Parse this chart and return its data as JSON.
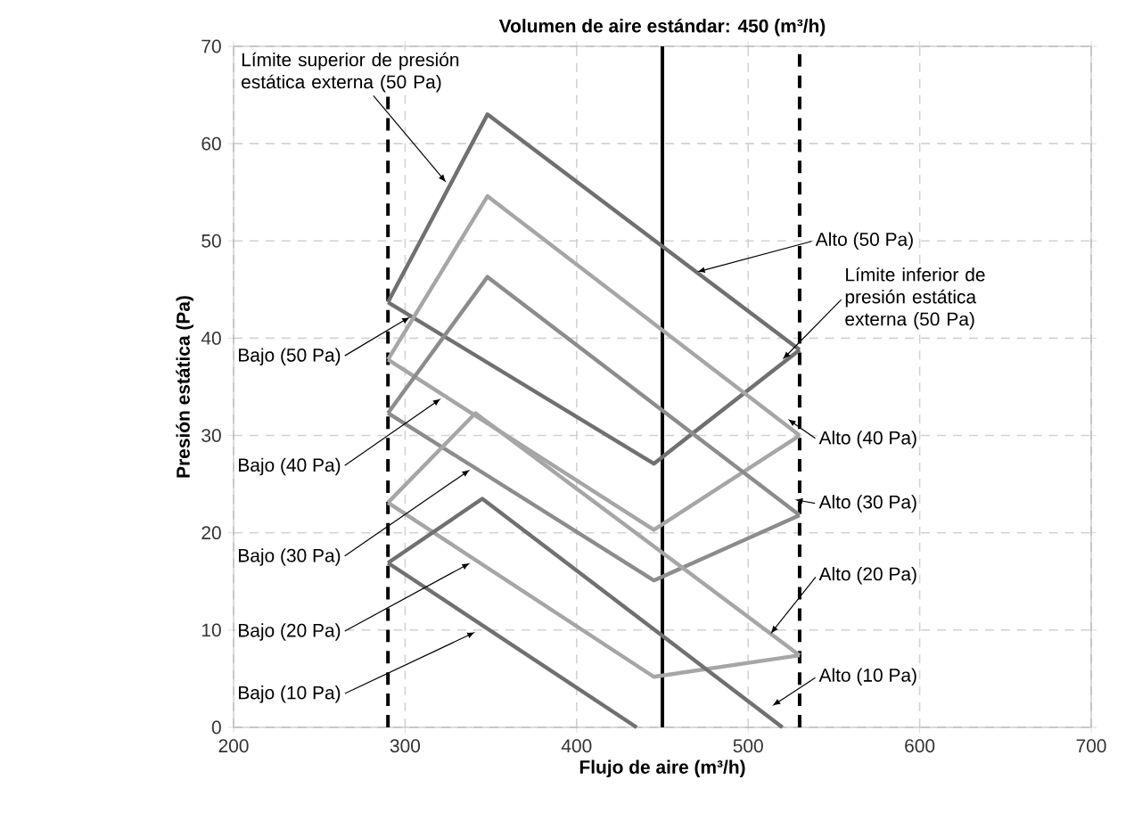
{
  "chart_data": {
    "type": "line",
    "title": "Volumen de aire estándar: 450 (m³/h)",
    "xlabel": "Flujo de aire (m³/h)",
    "ylabel": "Presión estática (Pa)",
    "xlim": [
      200,
      700
    ],
    "ylim": [
      0,
      70
    ],
    "xticks": [
      200,
      300,
      400,
      500,
      600,
      700
    ],
    "yticks": [
      0,
      10,
      20,
      30,
      40,
      50,
      60,
      70
    ],
    "grid": true,
    "marker": "none",
    "line_style": "solid",
    "series": [
      {
        "color": "#707070",
        "x": [
          290,
          445,
          530
        ],
        "values": [
          43.7,
          27.1,
          38.8
        ]
      },
      {
        "color": "#707070",
        "x": [
          290,
          348,
          530
        ],
        "values": [
          43.7,
          63,
          38.8
        ]
      },
      {
        "color": "#a6a6a6",
        "x": [
          290,
          445,
          530
        ],
        "values": [
          37.8,
          20.3,
          30
        ]
      },
      {
        "color": "#a6a6a6",
        "x": [
          290,
          348,
          530
        ],
        "values": [
          37.8,
          54.6,
          30
        ]
      },
      {
        "color": "#8c8c8c",
        "x": [
          290,
          445,
          530
        ],
        "values": [
          32.3,
          15.1,
          21.8
        ]
      },
      {
        "color": "#8c8c8c",
        "x": [
          290,
          348,
          530
        ],
        "values": [
          32.3,
          46.3,
          21.8
        ]
      },
      {
        "color": "#a6a6a6",
        "x": [
          290,
          445,
          530
        ],
        "values": [
          23.1,
          5.2,
          7.4
        ]
      },
      {
        "color": "#a6a6a6",
        "x": [
          290,
          341,
          530
        ],
        "values": [
          23.1,
          32.3,
          7.4
        ]
      },
      {
        "color": "#707070",
        "x": [
          290,
          435
        ],
        "values": [
          16.9,
          0
        ]
      },
      {
        "color": "#707070",
        "x": [
          290,
          345,
          520
        ],
        "values": [
          16.9,
          23.5,
          0
        ]
      }
    ],
    "ref_lines": [
      {
        "axis": "x",
        "value": 290,
        "color": "#000000",
        "line_style": "dashed"
      },
      {
        "axis": "x",
        "value": 450,
        "color": "#000000",
        "line_style": "solid"
      },
      {
        "axis": "x",
        "value": 530,
        "color": "#000000",
        "line_style": "dashed"
      }
    ],
    "annotations": [
      {
        "text": "Límite superior de presión estática externa (50 Pa)",
        "x": 324,
        "y": 56
      },
      {
        "text": "Alto (50 Pa)",
        "x": 470,
        "y": 46.8
      },
      {
        "text": "Límite inferior de presión estática externa (50 Pa)",
        "x": 520,
        "y": 37.8
      },
      {
        "text": "Alto (40 Pa)",
        "x": 523,
        "y": 31.7
      },
      {
        "text": "Alto (30 Pa)",
        "x": 527,
        "y": 23.4
      },
      {
        "text": "Alto (20 Pa)",
        "x": 513,
        "y": 9.6
      },
      {
        "text": "Alto (10 Pa)",
        "x": 514,
        "y": 2.2
      },
      {
        "text": "Bajo (50 Pa)",
        "x": 303,
        "y": 42.2
      },
      {
        "text": "Bajo (40 Pa)",
        "x": 321,
        "y": 33.8
      },
      {
        "text": "Bajo (30 Pa)",
        "x": 338,
        "y": 26.5
      },
      {
        "text": "Bajo (20 Pa)",
        "x": 338,
        "y": 16.9
      },
      {
        "text": "Bajo (10 Pa)",
        "x": 341,
        "y": 9.8
      }
    ]
  }
}
